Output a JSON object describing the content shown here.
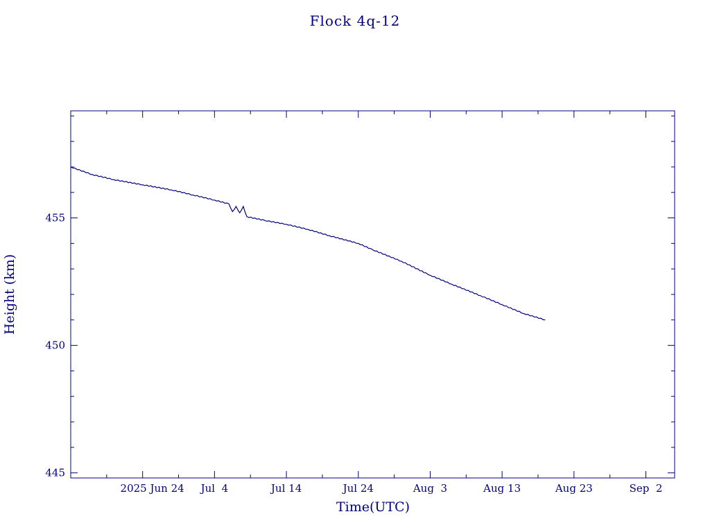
{
  "chart_data": {
    "type": "line",
    "title": "Flock 4q-12",
    "xlabel": "Time(UTC)",
    "ylabel": "Height (km)",
    "ylim": [
      444.8,
      459.2
    ],
    "xlim": [
      "2025-06-14",
      "2025-09-06"
    ],
    "grid": false,
    "x_ticks": [
      {
        "date": "2025-06-24",
        "label": "2025 Jun 24"
      },
      {
        "date": "2025-07-04",
        "label": "Jul  4"
      },
      {
        "date": "2025-07-14",
        "label": "Jul 14"
      },
      {
        "date": "2025-07-24",
        "label": "Jul 24"
      },
      {
        "date": "2025-08-03",
        "label": "Aug  3"
      },
      {
        "date": "2025-08-13",
        "label": "Aug 13"
      },
      {
        "date": "2025-08-23",
        "label": "Aug 23"
      },
      {
        "date": "2025-09-02",
        "label": "Sep  2"
      }
    ],
    "x_minor_dates": [
      "2025-06-19",
      "2025-06-29",
      "2025-07-09",
      "2025-07-19",
      "2025-07-29",
      "2025-08-08",
      "2025-08-18",
      "2025-08-28"
    ],
    "y_ticks": [
      {
        "value": 445,
        "label": "445"
      },
      {
        "value": 450,
        "label": "450"
      },
      {
        "value": 455,
        "label": "455"
      }
    ],
    "y_minor_values": [
      446,
      447,
      448,
      449,
      451,
      452,
      453,
      454,
      456,
      457,
      458,
      459
    ],
    "series": [
      {
        "points": [
          [
            "2025-06-14",
            457.0
          ],
          [
            "2025-06-17",
            456.7
          ],
          [
            "2025-06-20",
            456.5
          ],
          [
            "2025-06-24",
            456.3
          ],
          [
            "2025-06-28",
            456.1
          ],
          [
            "2025-07-01",
            455.9
          ],
          [
            "2025-07-04",
            455.7
          ],
          [
            "2025-07-06",
            455.55
          ],
          [
            "2025-07-06 12:00",
            455.25
          ],
          [
            "2025-07-07",
            455.45
          ],
          [
            "2025-07-07 12:00",
            455.2
          ],
          [
            "2025-07-08",
            455.45
          ],
          [
            "2025-07-08 12:00",
            455.05
          ],
          [
            "2025-07-11",
            454.9
          ],
          [
            "2025-07-14",
            454.75
          ],
          [
            "2025-07-17",
            454.55
          ],
          [
            "2025-07-20",
            454.3
          ],
          [
            "2025-07-24",
            454.0
          ],
          [
            "2025-07-26",
            453.75
          ],
          [
            "2025-07-30",
            453.3
          ],
          [
            "2025-08-03",
            452.75
          ],
          [
            "2025-08-06",
            452.4
          ],
          [
            "2025-08-10",
            451.95
          ],
          [
            "2025-08-13",
            451.6
          ],
          [
            "2025-08-16",
            451.25
          ],
          [
            "2025-08-19",
            451.0
          ]
        ]
      }
    ]
  }
}
